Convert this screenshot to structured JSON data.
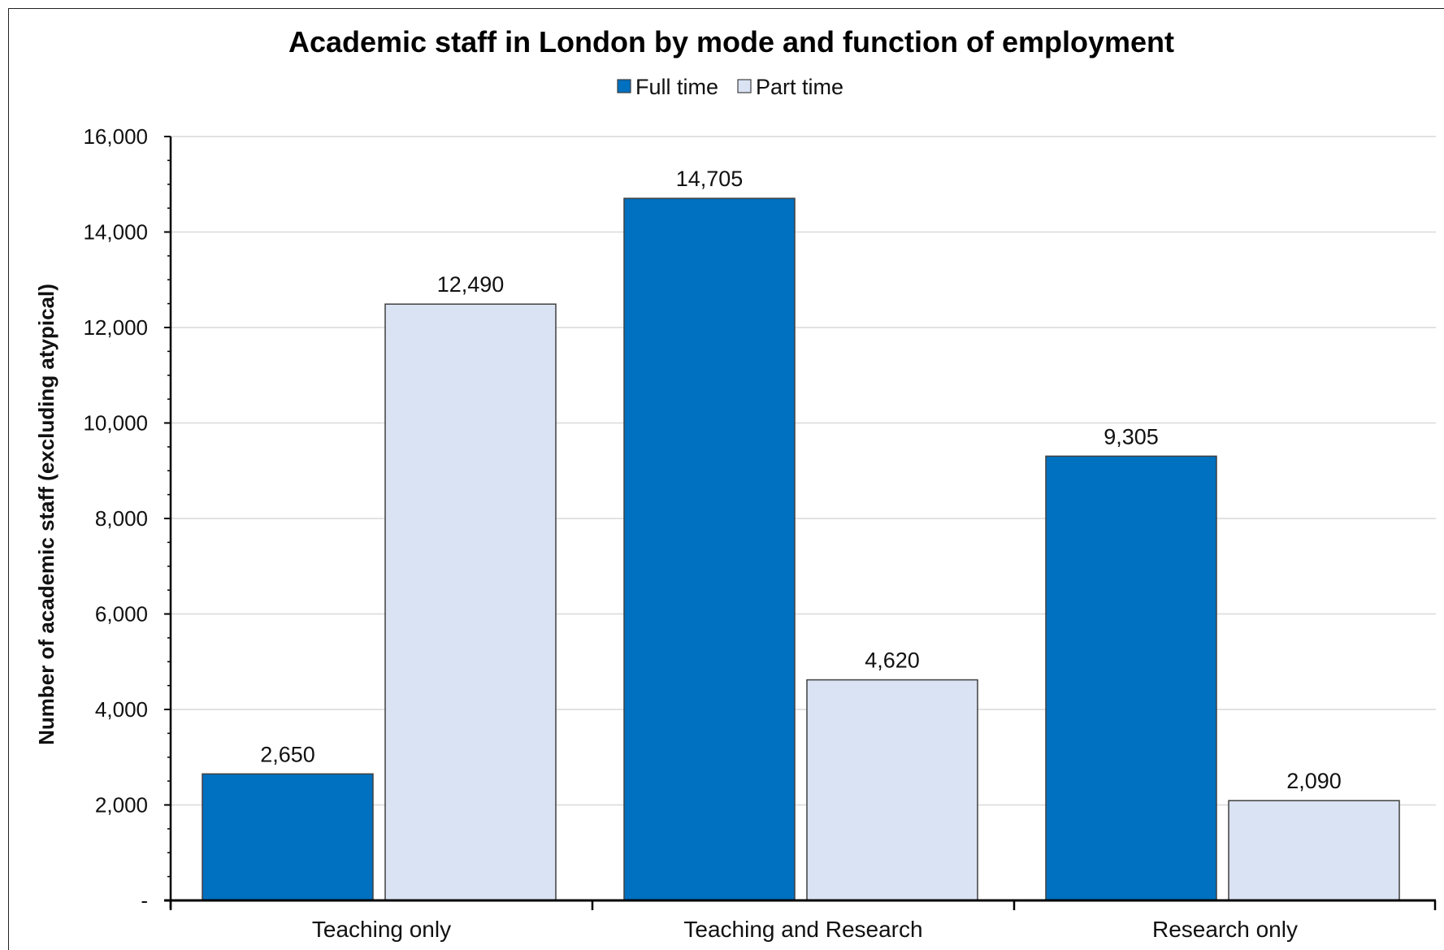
{
  "chart_data": {
    "type": "bar",
    "title": "Academic staff in London by mode and function of employment",
    "xlabel": "",
    "ylabel": "Number of academic staff (excluding atypical)",
    "categories": [
      "Teaching only",
      "Teaching and Research",
      "Research only"
    ],
    "series": [
      {
        "name": "Full time",
        "values": [
          2650,
          14705,
          9305
        ],
        "labels": [
          "2,650",
          "14,705",
          "9,305"
        ],
        "color": "#0070C0"
      },
      {
        "name": "Part time",
        "values": [
          12490,
          4620,
          2090
        ],
        "labels": [
          "12,490",
          "4,620",
          "2,090"
        ],
        "color": "#DAE3F3"
      }
    ],
    "ylim": [
      0,
      16000
    ],
    "yticks": [
      0,
      2000,
      4000,
      6000,
      8000,
      10000,
      12000,
      14000,
      16000
    ],
    "ytick_labels": [
      "-",
      "2,000",
      "4,000",
      "6,000",
      "8,000",
      "10,000",
      "12,000",
      "14,000",
      "16,000"
    ],
    "grid": true,
    "legend_position": "top-center"
  },
  "colors": {
    "grid": "#D9D9D9",
    "axis": "#000000",
    "bar_border": "#404040"
  }
}
